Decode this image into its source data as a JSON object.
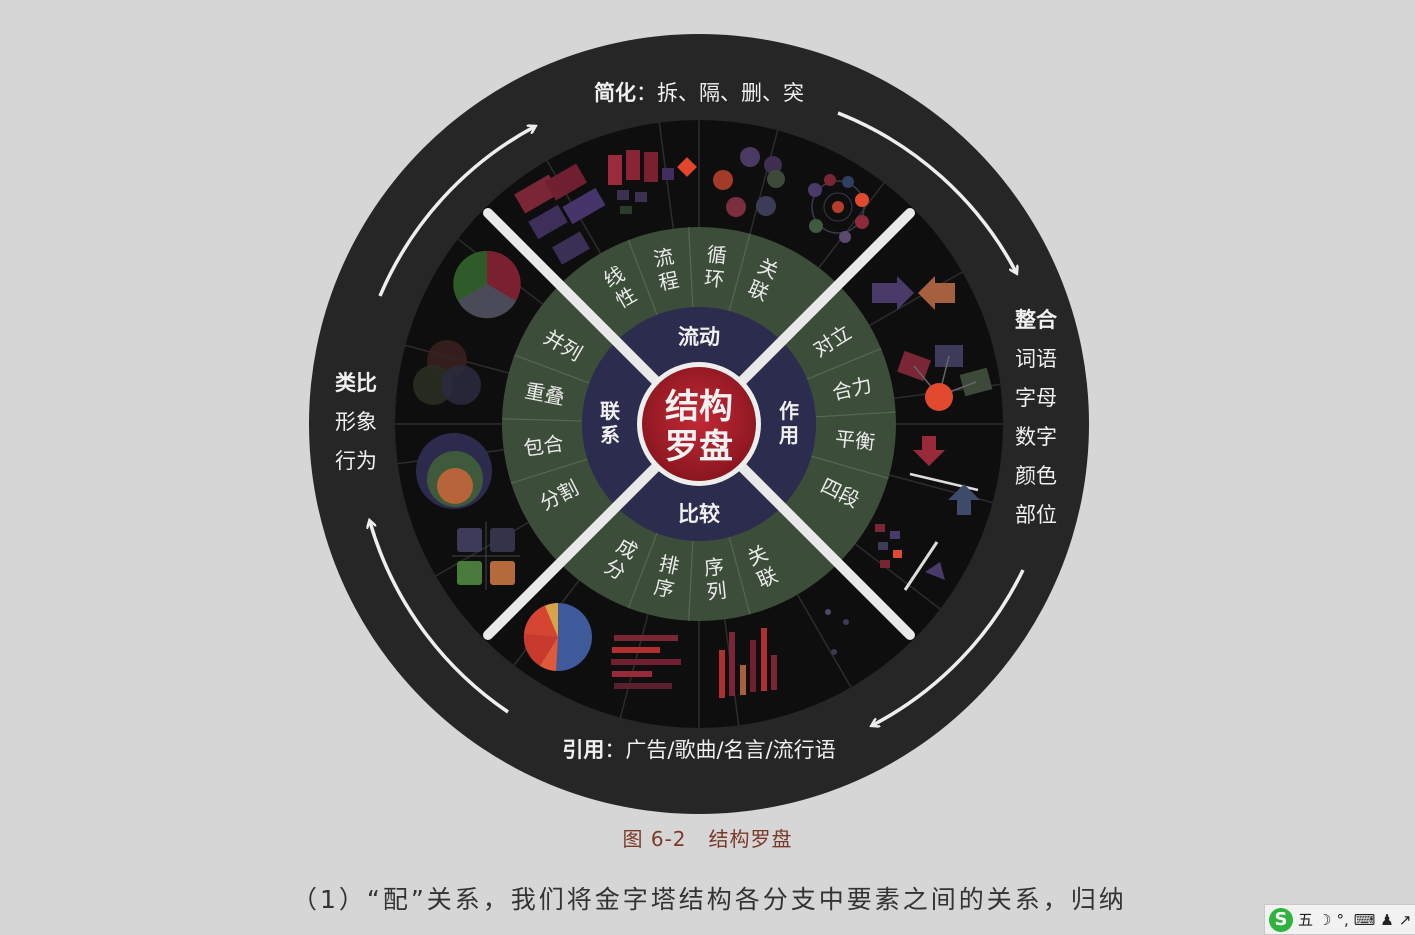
{
  "center": {
    "line1": "结构",
    "line2": "罗盘"
  },
  "inner_ring": {
    "top": "流动",
    "bottom": "比较",
    "left": "联系",
    "right": "作用"
  },
  "middle_ring": [
    {
      "text": "线性",
      "angle": -30,
      "vertical": true
    },
    {
      "text": "流程",
      "angle": -12,
      "vertical": true
    },
    {
      "text": "循环",
      "angle": 6,
      "vertical": true
    },
    {
      "text": "关联",
      "angle": 24,
      "vertical": true
    },
    {
      "text": "对立",
      "angle": 58,
      "vertical": false
    },
    {
      "text": "合力",
      "angle": 77,
      "vertical": false
    },
    {
      "text": "平衡",
      "angle": 96,
      "vertical": false
    },
    {
      "text": "四段",
      "angle": 116,
      "vertical": false
    },
    {
      "text": "关联",
      "angle": 156,
      "vertical": true
    },
    {
      "text": "序列",
      "angle": 174,
      "vertical": true
    },
    {
      "text": "排序",
      "angle": 192,
      "vertical": true
    },
    {
      "text": "成分",
      "angle": 210,
      "vertical": true
    },
    {
      "text": "分割",
      "angle": 243,
      "vertical": false
    },
    {
      "text": "包合",
      "angle": 262,
      "vertical": false
    },
    {
      "text": "重叠",
      "angle": 281,
      "vertical": false
    },
    {
      "text": "并列",
      "angle": 300,
      "vertical": false
    }
  ],
  "outer_labels": {
    "top": {
      "bold": "简化",
      "rest": "：拆、隔、删、突"
    },
    "bottom": {
      "bold": "引用",
      "rest": "：广告/歌曲/名言/流行语"
    },
    "left": {
      "bold": "类比",
      "items": [
        "形象",
        "行为"
      ]
    },
    "right": {
      "bold": "整合",
      "items": [
        "词语",
        "字母",
        "数字",
        "颜色",
        "部位"
      ]
    }
  },
  "colors": {
    "background": "#d6d6d7",
    "outer_ring": "#272626",
    "icon_band": "#0f0e0f",
    "middle_ring": "#3c4e39",
    "inner_ring": "#2c2c4e",
    "center": "#a4202c",
    "divider": "#e9e9e9"
  },
  "caption": {
    "figure": "图 6-2",
    "title": "结构罗盘"
  },
  "body_text": "（1）“配”关系，我们将金字塔结构各分支中要素之间的关系，归纳",
  "ime_toolbar": {
    "mode": "五",
    "items": [
      "☽",
      "°,",
      "⌨",
      "♟",
      "↗"
    ]
  }
}
